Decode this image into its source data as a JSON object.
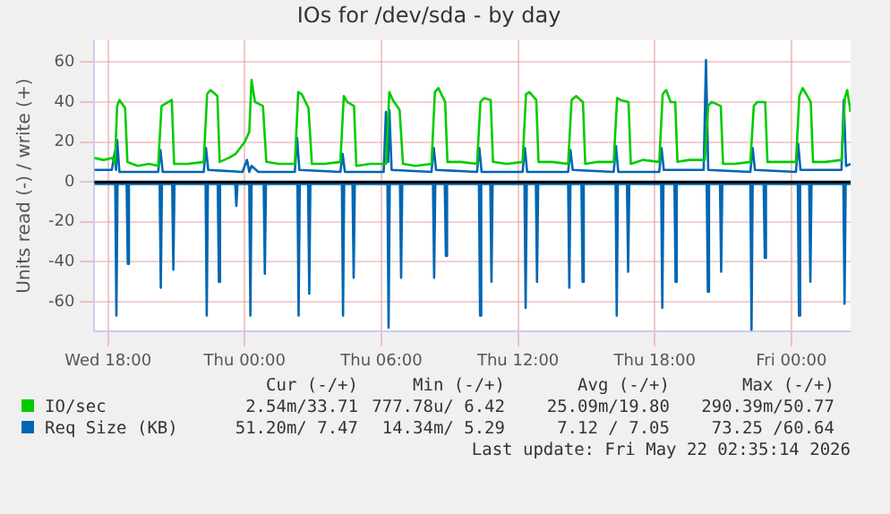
{
  "chart_data": {
    "type": "line",
    "title": "IOs for /dev/sda - by day",
    "ylabel": "Units read (-) / write (+)",
    "xlim": [
      "2026-05-20T17:24",
      "2026-05-22T02:36"
    ],
    "xticks": [
      {
        "value": "2026-05-20T18:00",
        "label": "Wed 18:00"
      },
      {
        "value": "2026-05-21T00:00",
        "label": "Thu 00:00"
      },
      {
        "value": "2026-05-21T06:00",
        "label": "Thu 06:00"
      },
      {
        "value": "2026-05-21T12:00",
        "label": "Thu 12:00"
      },
      {
        "value": "2026-05-21T18:00",
        "label": "Thu 18:00"
      },
      {
        "value": "2026-05-22T00:00",
        "label": "Fri 00:00"
      }
    ],
    "ylim": [
      -75,
      71
    ],
    "yticks": [
      -60,
      -40,
      -20,
      0,
      20,
      40,
      60
    ],
    "grid": true,
    "legend": "bottom",
    "marker": "none",
    "line_style": "solid",
    "ref_lines": [
      {
        "axis": "y",
        "value": 0,
        "color": "#000000"
      }
    ],
    "series": [
      {
        "name": "IO/sec",
        "color": "#00cc00",
        "x": [
          "2026-05-20T17:24",
          "2026-05-20T17:48",
          "2026-05-20T18:12",
          "2026-05-20T18:18",
          "2026-05-20T18:24",
          "2026-05-20T18:30",
          "2026-05-20T18:45",
          "2026-05-20T18:51",
          "2026-05-20T19:18",
          "2026-05-20T19:48",
          "2026-05-20T20:12",
          "2026-05-20T20:21",
          "2026-05-20T20:30",
          "2026-05-20T20:48",
          "2026-05-20T20:54",
          "2026-05-20T21:30",
          "2026-05-20T22:12",
          "2026-05-20T22:21",
          "2026-05-20T22:30",
          "2026-05-20T22:48",
          "2026-05-20T22:54",
          "2026-05-20T23:18",
          "2026-05-20T23:36",
          "2026-05-21T00:00",
          "2026-05-21T00:12",
          "2026-05-21T00:18",
          "2026-05-21T00:27",
          "2026-05-21T00:48",
          "2026-05-21T00:57",
          "2026-05-21T01:30",
          "2026-05-21T02:12",
          "2026-05-21T02:21",
          "2026-05-21T02:30",
          "2026-05-21T02:48",
          "2026-05-21T02:57",
          "2026-05-21T03:30",
          "2026-05-21T04:12",
          "2026-05-21T04:21",
          "2026-05-21T04:30",
          "2026-05-21T04:48",
          "2026-05-21T04:54",
          "2026-05-21T05:30",
          "2026-05-21T06:12",
          "2026-05-21T06:21",
          "2026-05-21T06:30",
          "2026-05-21T06:48",
          "2026-05-21T06:57",
          "2026-05-21T07:30",
          "2026-05-21T08:12",
          "2026-05-21T08:21",
          "2026-05-21T08:30",
          "2026-05-21T08:48",
          "2026-05-21T08:54",
          "2026-05-21T09:30",
          "2026-05-21T10:12",
          "2026-05-21T10:21",
          "2026-05-21T10:30",
          "2026-05-21T10:48",
          "2026-05-21T10:54",
          "2026-05-21T11:30",
          "2026-05-21T12:12",
          "2026-05-21T12:21",
          "2026-05-21T12:30",
          "2026-05-21T12:48",
          "2026-05-21T12:54",
          "2026-05-21T13:30",
          "2026-05-21T14:12",
          "2026-05-21T14:21",
          "2026-05-21T14:33",
          "2026-05-21T14:51",
          "2026-05-21T14:57",
          "2026-05-21T15:30",
          "2026-05-21T16:12",
          "2026-05-21T16:21",
          "2026-05-21T16:30",
          "2026-05-21T16:51",
          "2026-05-21T16:57",
          "2026-05-21T17:30",
          "2026-05-21T18:12",
          "2026-05-21T18:21",
          "2026-05-21T18:30",
          "2026-05-21T18:42",
          "2026-05-21T18:54",
          "2026-05-21T19:00",
          "2026-05-21T19:30",
          "2026-05-21T20:12",
          "2026-05-21T20:21",
          "2026-05-21T20:30",
          "2026-05-21T20:54",
          "2026-05-21T21:00",
          "2026-05-21T21:30",
          "2026-05-21T22:12",
          "2026-05-21T22:21",
          "2026-05-21T22:30",
          "2026-05-21T22:51",
          "2026-05-21T22:57",
          "2026-05-21T23:30",
          "2026-05-22T00:12",
          "2026-05-22T00:21",
          "2026-05-22T00:30",
          "2026-05-22T00:51",
          "2026-05-22T00:57",
          "2026-05-22T01:30",
          "2026-05-22T02:12",
          "2026-05-22T02:21",
          "2026-05-22T02:27",
          "2026-05-22T02:36"
        ],
        "values": [
          12,
          11,
          12,
          9,
          38,
          41,
          37,
          10,
          8,
          9,
          8,
          38,
          39,
          41,
          9,
          9,
          10,
          44,
          46,
          43,
          10,
          12,
          14,
          20,
          25,
          51,
          40,
          38,
          10,
          9,
          9,
          45,
          44,
          37,
          9,
          9,
          10,
          43,
          40,
          38,
          8,
          9,
          9,
          45,
          41,
          36,
          9,
          8,
          9,
          45,
          47,
          40,
          10,
          10,
          9,
          40,
          42,
          41,
          10,
          9,
          10,
          44,
          45,
          41,
          10,
          10,
          9,
          41,
          43,
          40,
          9,
          10,
          10,
          42,
          41,
          40,
          9,
          11,
          10,
          44,
          46,
          40,
          40,
          10,
          11,
          11,
          38,
          40,
          38,
          9,
          9,
          10,
          38,
          40,
          40,
          10,
          10,
          10,
          43,
          47,
          40,
          10,
          10,
          11,
          42,
          46,
          35
        ]
      },
      {
        "name": "Req Size (KB)",
        "color": "#0066b3",
        "x": [
          "2026-05-20T17:24",
          "2026-05-20T18:10",
          "2026-05-20T18:18",
          "2026-05-20T18:21",
          "2026-05-20T18:24",
          "2026-05-20T18:30",
          "2026-05-20T20:12",
          "2026-05-20T20:18",
          "2026-05-20T20:24",
          "2026-05-20T22:12",
          "2026-05-20T22:18",
          "2026-05-20T22:24",
          "2026-05-20T23:54",
          "2026-05-21T00:06",
          "2026-05-21T00:12",
          "2026-05-21T00:18",
          "2026-05-21T00:36",
          "2026-05-21T02:12",
          "2026-05-21T02:18",
          "2026-05-21T02:24",
          "2026-05-21T04:12",
          "2026-05-21T04:18",
          "2026-05-21T04:24",
          "2026-05-21T06:06",
          "2026-05-21T06:12",
          "2026-05-21T06:18",
          "2026-05-21T06:21",
          "2026-05-21T06:27",
          "2026-05-21T08:12",
          "2026-05-21T08:18",
          "2026-05-21T08:24",
          "2026-05-21T10:12",
          "2026-05-21T10:18",
          "2026-05-21T10:24",
          "2026-05-21T12:12",
          "2026-05-21T12:18",
          "2026-05-21T12:24",
          "2026-05-21T14:12",
          "2026-05-21T14:18",
          "2026-05-21T14:24",
          "2026-05-21T16:12",
          "2026-05-21T16:18",
          "2026-05-21T16:24",
          "2026-05-21T18:12",
          "2026-05-21T18:18",
          "2026-05-21T18:24",
          "2026-05-21T20:09",
          "2026-05-21T20:15",
          "2026-05-21T20:21",
          "2026-05-21T22:12",
          "2026-05-21T22:18",
          "2026-05-21T22:24",
          "2026-05-22T00:12",
          "2026-05-22T00:18",
          "2026-05-22T00:24",
          "2026-05-22T02:12",
          "2026-05-22T02:18",
          "2026-05-22T02:24",
          "2026-05-22T02:36"
        ],
        "values": [
          6,
          6,
          15,
          6,
          21,
          5,
          5,
          16,
          5,
          5,
          17,
          6,
          5,
          11,
          5,
          8,
          5,
          5,
          22,
          6,
          5,
          14,
          5,
          5,
          35,
          10,
          36,
          6,
          5,
          17,
          6,
          5,
          17,
          5,
          5,
          17,
          5,
          5,
          16,
          6,
          5,
          18,
          5,
          5,
          17,
          6,
          6,
          61,
          6,
          5,
          17,
          6,
          5,
          19,
          6,
          6,
          41,
          8,
          9
        ]
      },
      {
        "color": "#0066b3",
        "x": [
          "2026-05-20T17:24",
          "2026-05-20T18:19",
          "2026-05-20T18:22",
          "2026-05-20T18:25",
          "2026-05-20T18:49",
          "2026-05-20T18:52",
          "2026-05-20T18:55",
          "2026-05-20T20:16",
          "2026-05-20T20:19",
          "2026-05-20T20:22",
          "2026-05-20T20:49",
          "2026-05-20T20:52",
          "2026-05-20T20:55",
          "2026-05-20T22:17",
          "2026-05-20T22:20",
          "2026-05-20T22:23",
          "2026-05-20T22:49",
          "2026-05-20T22:52",
          "2026-05-20T22:55",
          "2026-05-20T23:35",
          "2026-05-20T23:38",
          "2026-05-20T23:41",
          "2026-05-21T00:12",
          "2026-05-21T00:15",
          "2026-05-21T00:18",
          "2026-05-21T00:50",
          "2026-05-21T00:53",
          "2026-05-21T00:56",
          "2026-05-21T02:19",
          "2026-05-21T02:22",
          "2026-05-21T02:25",
          "2026-05-21T02:47",
          "2026-05-21T02:50",
          "2026-05-21T02:53",
          "2026-05-21T04:16",
          "2026-05-21T04:19",
          "2026-05-21T04:22",
          "2026-05-21T04:44",
          "2026-05-21T04:47",
          "2026-05-21T04:50",
          "2026-05-21T06:16",
          "2026-05-21T06:19",
          "2026-05-21T06:22",
          "2026-05-21T06:49",
          "2026-05-21T06:52",
          "2026-05-21T06:55",
          "2026-05-21T08:16",
          "2026-05-21T08:19",
          "2026-05-21T08:22",
          "2026-05-21T08:47",
          "2026-05-21T08:50",
          "2026-05-21T08:53",
          "2026-05-21T10:17",
          "2026-05-21T10:20",
          "2026-05-21T10:23",
          "2026-05-21T10:47",
          "2026-05-21T10:50",
          "2026-05-21T10:53",
          "2026-05-21T12:17",
          "2026-05-21T12:20",
          "2026-05-21T12:23",
          "2026-05-21T12:47",
          "2026-05-21T12:50",
          "2026-05-21T12:53",
          "2026-05-21T14:12",
          "2026-05-21T14:15",
          "2026-05-21T14:18",
          "2026-05-21T14:47",
          "2026-05-21T14:50",
          "2026-05-21T14:53",
          "2026-05-21T16:17",
          "2026-05-21T16:20",
          "2026-05-21T16:23",
          "2026-05-21T16:47",
          "2026-05-21T16:50",
          "2026-05-21T16:53",
          "2026-05-21T18:17",
          "2026-05-21T18:20",
          "2026-05-21T18:23",
          "2026-05-21T18:52",
          "2026-05-21T18:55",
          "2026-05-21T18:58",
          "2026-05-21T20:17",
          "2026-05-21T20:20",
          "2026-05-21T20:23",
          "2026-05-21T20:52",
          "2026-05-21T20:55",
          "2026-05-21T20:58",
          "2026-05-21T22:12",
          "2026-05-21T22:15",
          "2026-05-21T22:18",
          "2026-05-21T22:47",
          "2026-05-21T22:50",
          "2026-05-21T22:53",
          "2026-05-22T00:17",
          "2026-05-22T00:20",
          "2026-05-22T00:23",
          "2026-05-22T00:47",
          "2026-05-22T00:50",
          "2026-05-22T00:53",
          "2026-05-22T02:17",
          "2026-05-22T02:20",
          "2026-05-22T02:23",
          "2026-05-22T02:36"
        ],
        "values": [
          -1,
          -1,
          -67,
          -1,
          -1,
          -41,
          -1,
          -1,
          -53,
          -1,
          -1,
          -44,
          -1,
          -1,
          -67,
          -1,
          -1,
          -50,
          -1,
          -1,
          -12,
          -1,
          -1,
          -67,
          -1,
          -1,
          -46,
          -1,
          -1,
          -67,
          -1,
          -1,
          -56,
          -1,
          -1,
          -67,
          -1,
          -1,
          -48,
          -1,
          -1,
          -73,
          -1,
          -1,
          -48,
          -1,
          -1,
          -48,
          -1,
          -1,
          -37,
          -1,
          -1,
          -67,
          -1,
          -1,
          -50,
          -1,
          -1,
          -63,
          -1,
          -1,
          -50,
          -1,
          -1,
          -53,
          -1,
          -1,
          -50,
          -1,
          -1,
          -67,
          -1,
          -1,
          -45,
          -1,
          -1,
          -63,
          -1,
          -1,
          -50,
          -1,
          -1,
          -55,
          -1,
          -1,
          -45,
          -1,
          -1,
          -74,
          -1,
          -1,
          -38,
          -1,
          -1,
          -67,
          -1,
          -1,
          -50,
          -1,
          -1,
          -61,
          -1,
          -1
        ]
      }
    ],
    "annotations": [
      "Cur (-/+)",
      "Min (-/+)",
      "Avg (-/+)",
      "Max (-/+)",
      "2.54m/33.71",
      "777.78u/ 6.42",
      "25.09m/19.80",
      "290.39m/50.77",
      "51.20m/ 7.47",
      "14.34m/ 5.29",
      "7.12 / 7.05",
      "73.25 /60.64",
      "Last update: Fri May 22 02:35:14 2026"
    ]
  }
}
